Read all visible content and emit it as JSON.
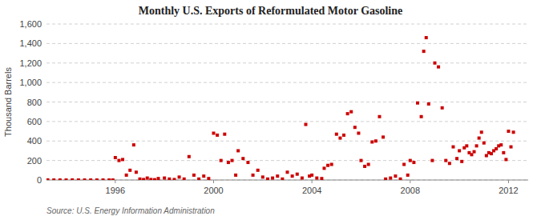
{
  "chart_data": {
    "type": "scatter",
    "title": "Monthly U.S. Exports of Reformulated Motor Gasoline",
    "y_label": "Thousand Barrels",
    "source": "Source: U.S. Energy Information Administration",
    "color": "#cc0000",
    "marker": "square",
    "grid": true,
    "xlim": [
      1993.2,
      2012.8
    ],
    "xticks": [
      1996,
      2000,
      2004,
      2008,
      2012
    ],
    "ylim": [
      0,
      1600
    ],
    "yticks": [
      0,
      200,
      400,
      600,
      800,
      {
        "value": 1000,
        "label": "1,000"
      },
      {
        "value": 1200,
        "label": "1,200"
      },
      {
        "value": 1400,
        "label": "1,400"
      },
      {
        "value": 1600,
        "label": "1,600"
      }
    ],
    "x": [
      1993.25,
      1993.5,
      1993.75,
      1994.0,
      1994.25,
      1994.5,
      1994.75,
      1995.0,
      1995.25,
      1995.5,
      1995.75,
      1995.9,
      1996.0,
      1996.15,
      1996.3,
      1996.45,
      1996.6,
      1996.75,
      1996.85,
      1997.0,
      1997.15,
      1997.3,
      1997.45,
      1997.6,
      1997.75,
      1998.0,
      1998.2,
      1998.4,
      1998.6,
      1998.8,
      1999.0,
      1999.2,
      1999.4,
      1999.6,
      1999.8,
      2000.0,
      2000.15,
      2000.3,
      2000.45,
      2000.6,
      2000.75,
      2000.9,
      2001.0,
      2001.2,
      2001.4,
      2001.6,
      2001.8,
      2002.0,
      2002.2,
      2002.4,
      2002.6,
      2002.8,
      2003.0,
      2003.2,
      2003.4,
      2003.6,
      2003.75,
      2003.9,
      2004.0,
      2004.2,
      2004.4,
      2004.5,
      2004.65,
      2004.8,
      2005.0,
      2005.15,
      2005.3,
      2005.45,
      2005.6,
      2005.75,
      2005.9,
      2006.0,
      2006.15,
      2006.3,
      2006.45,
      2006.6,
      2006.75,
      2006.9,
      2007.0,
      2007.2,
      2007.4,
      2007.6,
      2007.75,
      2007.9,
      2008.0,
      2008.15,
      2008.3,
      2008.45,
      2008.55,
      2008.65,
      2008.75,
      2008.9,
      2009.0,
      2009.15,
      2009.3,
      2009.45,
      2009.6,
      2009.75,
      2009.9,
      2010.0,
      2010.1,
      2010.2,
      2010.3,
      2010.4,
      2010.5,
      2010.6,
      2010.7,
      2010.8,
      2010.9,
      2011.0,
      2011.1,
      2011.2,
      2011.3,
      2011.4,
      2011.5,
      2011.6,
      2011.7,
      2011.8,
      2011.9,
      2012.0,
      2012.1,
      2012.2
    ],
    "values": [
      1,
      0,
      0,
      0,
      1,
      0,
      0,
      0,
      0,
      0,
      0,
      0,
      230,
      200,
      210,
      50,
      100,
      360,
      80,
      10,
      5,
      20,
      5,
      3,
      15,
      20,
      10,
      5,
      30,
      10,
      240,
      50,
      10,
      40,
      15,
      480,
      460,
      200,
      470,
      180,
      200,
      50,
      300,
      220,
      180,
      50,
      100,
      30,
      10,
      20,
      40,
      10,
      80,
      40,
      60,
      20,
      570,
      40,
      50,
      20,
      15,
      120,
      150,
      160,
      470,
      430,
      460,
      680,
      700,
      540,
      480,
      200,
      140,
      160,
      390,
      400,
      650,
      440,
      10,
      20,
      40,
      10,
      160,
      50,
      200,
      180,
      790,
      650,
      1320,
      1460,
      780,
      200,
      1200,
      1160,
      740,
      200,
      170,
      340,
      220,
      300,
      190,
      330,
      350,
      280,
      260,
      290,
      350,
      430,
      490,
      380,
      250,
      280,
      270,
      300,
      320,
      350,
      360,
      280,
      210,
      500,
      340,
      490
    ]
  }
}
